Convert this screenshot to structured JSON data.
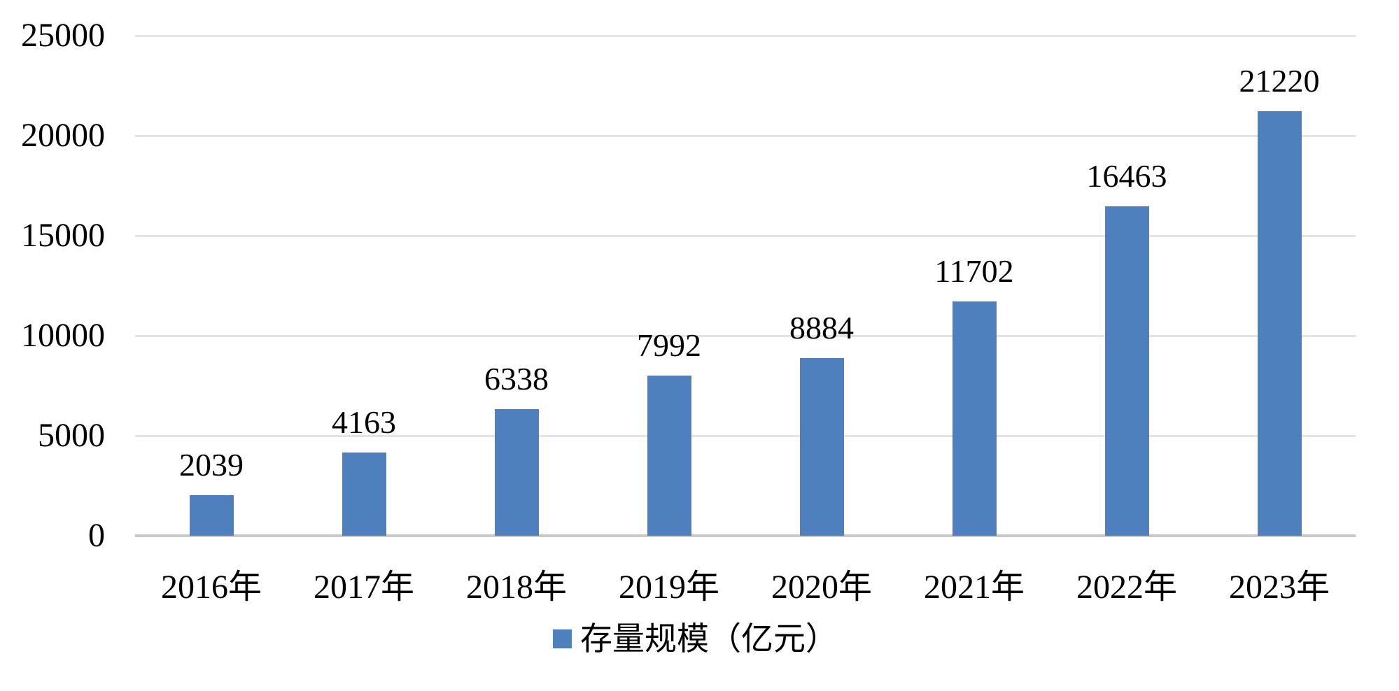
{
  "chart_data": {
    "type": "bar",
    "title": "",
    "xlabel": "",
    "ylabel": "",
    "categories": [
      "2016年",
      "2017年",
      "2018年",
      "2019年",
      "2020年",
      "2021年",
      "2022年",
      "2023年"
    ],
    "series": [
      {
        "name": "存量规模（亿元）",
        "values": [
          2039,
          4163,
          6338,
          7992,
          8884,
          11702,
          16463,
          21220
        ]
      }
    ],
    "value_labels_shown": true,
    "ylim": [
      0,
      25000
    ],
    "yticks": [
      0,
      5000,
      10000,
      15000,
      20000,
      25000
    ],
    "grid": true,
    "legend_position": "bottom"
  },
  "legend": {
    "label": "存量规模（亿元）"
  },
  "colors": {
    "bar": "#4E80BE",
    "gridline": "#E4E4E4",
    "axis_line": "#C9C9C9",
    "text": "#000000",
    "background": "#FFFFFF"
  }
}
